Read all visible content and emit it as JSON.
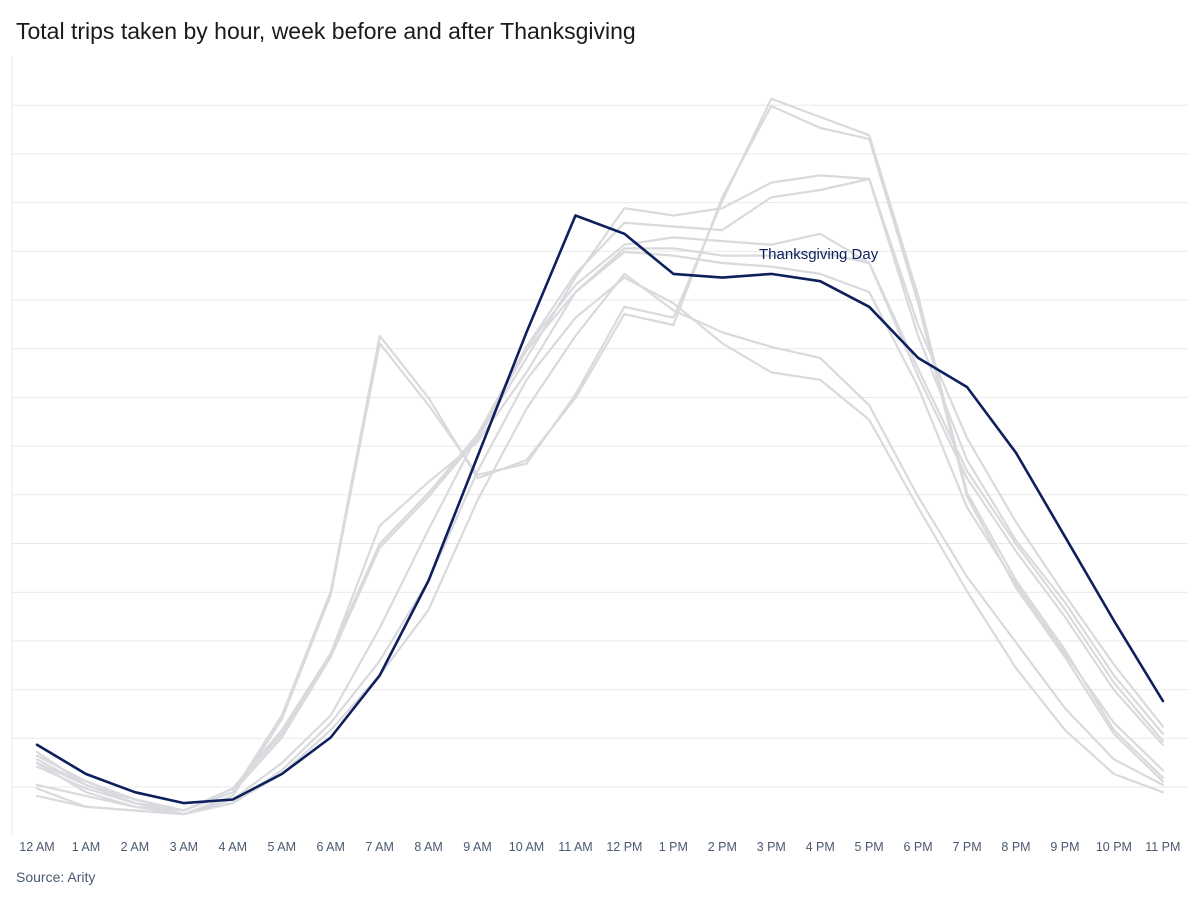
{
  "title": "Total trips taken by hour, week before and after Thanksgiving",
  "source": "Source: Arity",
  "colors": {
    "highlight": "#0d1f5c",
    "context": "#d9dadd",
    "grid": "#e9e9ec"
  },
  "chart_data": {
    "type": "line",
    "title": "Total trips taken by hour, week before and after Thanksgiving",
    "xlabel": "",
    "ylabel": "",
    "categories": [
      "12 AM",
      "1 AM",
      "2 AM",
      "3 AM",
      "4 AM",
      "5 AM",
      "6 AM",
      "7 AM",
      "8 AM",
      "9 AM",
      "10 AM",
      "11 AM",
      "12 PM",
      "1 PM",
      "2 PM",
      "3 PM",
      "4 PM",
      "5 PM",
      "6 PM",
      "7 PM",
      "8 PM",
      "9 PM",
      "10 PM",
      "11 PM"
    ],
    "ylim": [
      0,
      100
    ],
    "grid": true,
    "y_tick_labels_shown": false,
    "highlight_annotation": "Thanksgiving Day",
    "series": [
      {
        "highlight": false,
        "values": [
          9.5,
          6.5,
          4.5,
          3.0,
          5.5,
          16.0,
          33.0,
          67.5,
          59.0,
          49.5,
          51.0,
          60.5,
          72.5,
          71.0,
          87.0,
          101.0,
          98.5,
          96.0,
          74.0,
          47.0,
          35.0,
          25.5,
          14.5,
          8.0
        ]
      },
      {
        "highlight": false,
        "values": [
          10.0,
          6.0,
          4.0,
          3.5,
          6.0,
          16.5,
          33.5,
          68.5,
          60.0,
          49.0,
          51.5,
          60.0,
          71.5,
          70.0,
          87.5,
          100.0,
          97.0,
          95.5,
          73.0,
          46.5,
          34.0,
          24.5,
          14.0,
          7.5
        ]
      },
      {
        "highlight": false,
        "values": [
          6.5,
          4.0,
          3.5,
          3.0,
          5.0,
          10.0,
          16.5,
          28.5,
          42.0,
          55.0,
          66.5,
          74.5,
          80.0,
          79.5,
          78.5,
          78.0,
          77.0,
          74.5,
          61.5,
          45.0,
          34.5,
          25.0,
          15.5,
          9.0
        ]
      },
      {
        "highlight": false,
        "values": [
          5.5,
          4.0,
          3.5,
          3.0,
          4.5,
          9.0,
          15.5,
          24.0,
          35.0,
          50.0,
          62.5,
          71.0,
          76.5,
          73.0,
          67.5,
          63.5,
          62.5,
          57.0,
          45.0,
          33.5,
          23.0,
          14.5,
          8.5,
          6.0
        ]
      },
      {
        "highlight": false,
        "values": [
          7.0,
          5.5,
          4.0,
          3.0,
          4.5,
          8.5,
          14.5,
          22.0,
          31.0,
          46.0,
          58.5,
          68.5,
          77.0,
          72.0,
          69.0,
          67.0,
          65.5,
          59.0,
          46.5,
          35.5,
          26.5,
          17.5,
          10.5,
          7.0
        ]
      },
      {
        "highlight": false,
        "values": [
          11.5,
          7.0,
          4.5,
          3.5,
          6.5,
          14.5,
          25.0,
          42.5,
          48.5,
          54.0,
          63.5,
          74.5,
          80.5,
          80.5,
          79.5,
          79.5,
          80.0,
          78.5,
          63.0,
          49.0,
          39.0,
          30.0,
          20.0,
          12.5
        ]
      },
      {
        "highlight": false,
        "values": [
          11.0,
          7.5,
          5.0,
          3.5,
          6.5,
          14.0,
          25.0,
          40.0,
          47.0,
          55.0,
          67.0,
          75.5,
          81.0,
          82.0,
          81.5,
          81.0,
          82.5,
          78.5,
          64.0,
          50.0,
          40.0,
          31.0,
          21.0,
          13.0
        ]
      },
      {
        "highlight": false,
        "values": [
          10.5,
          7.0,
          4.5,
          3.5,
          6.0,
          13.5,
          24.5,
          39.5,
          46.5,
          54.5,
          65.5,
          76.5,
          86.0,
          85.0,
          86.0,
          89.5,
          90.5,
          90.0,
          68.5,
          51.5,
          40.5,
          32.0,
          22.0,
          14.0
        ]
      },
      {
        "highlight": false,
        "values": [
          10.0,
          7.0,
          5.0,
          3.5,
          6.5,
          14.0,
          25.0,
          40.0,
          47.0,
          54.5,
          67.0,
          77.0,
          84.0,
          83.5,
          83.0,
          87.5,
          88.5,
          90.0,
          70.0,
          54.5,
          43.0,
          33.0,
          23.5,
          15.0
        ]
      },
      {
        "highlight": true,
        "name": "Thanksgiving Day",
        "values": [
          12.5,
          8.5,
          6.0,
          4.5,
          5.0,
          8.5,
          13.5,
          22.0,
          35.0,
          52.0,
          69.0,
          85.0,
          82.5,
          77.0,
          76.5,
          77.0,
          76.0,
          72.5,
          65.5,
          61.5,
          52.5,
          41.0,
          29.5,
          18.5
        ]
      }
    ]
  }
}
